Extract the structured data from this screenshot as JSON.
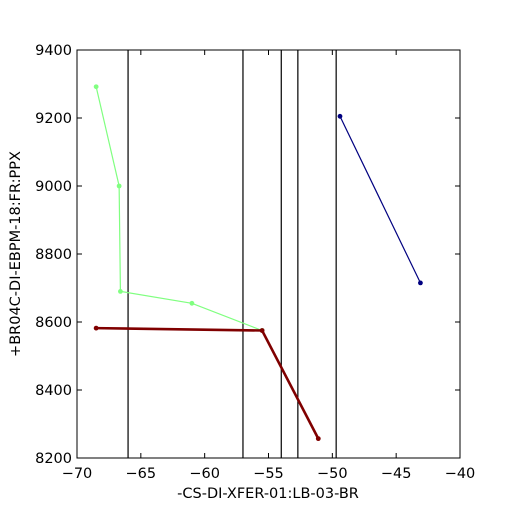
{
  "chart_data": {
    "type": "line",
    "title": "",
    "xlabel": "-CS-DI-XFER-01:LB-03-BR",
    "ylabel": "+BR04C-DI-EBPM-18:FR:PPX",
    "xlim": [
      -70,
      -40
    ],
    "ylim": [
      8200,
      9400
    ],
    "xticks": [
      -70,
      -65,
      -60,
      -55,
      -50,
      -45,
      -40
    ],
    "yticks": [
      8200,
      8400,
      8600,
      8800,
      9000,
      9200,
      9400
    ],
    "xtick_labels": [
      "−70",
      "−65",
      "−60",
      "−55",
      "−50",
      "−45",
      "−40"
    ],
    "ytick_labels": [
      "8200",
      "8400",
      "8600",
      "8800",
      "9000",
      "9200",
      "9400"
    ],
    "grid": false,
    "vertical_lines": [
      -66.0,
      -57.0,
      -54.0,
      -52.7,
      -49.7
    ],
    "series": [
      {
        "color": "#80ff80",
        "x": [
          -68.5,
          -66.7,
          -66.6,
          -61.0,
          -55.5
        ],
        "y": [
          9292,
          9000,
          8690,
          8655,
          8575
        ]
      },
      {
        "color": "#000080",
        "x": [
          -49.4,
          -43.1
        ],
        "y": [
          9205,
          8715
        ]
      },
      {
        "color": "#800000",
        "x": [
          -68.5,
          -55.5,
          -51.1
        ],
        "y": [
          8582,
          8575,
          8257
        ]
      }
    ]
  }
}
